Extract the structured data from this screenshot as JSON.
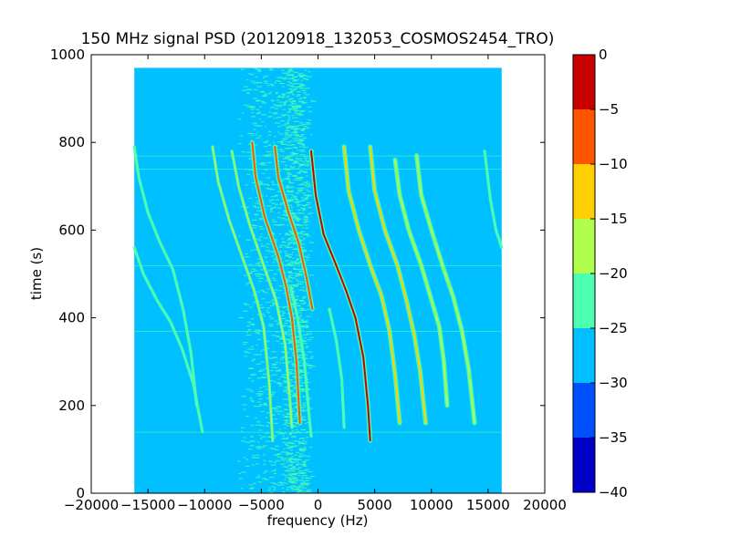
{
  "chart_data": {
    "type": "heatmap",
    "title": "150 MHz signal PSD (20120918_132053_COSMOS2454_TRO)",
    "xlabel": "frequency (Hz)",
    "ylabel": "time (s)",
    "xlim": [
      -20000,
      20000
    ],
    "ylim": [
      0,
      1000
    ],
    "x_ticks": [
      -20000,
      -15000,
      -10000,
      -5000,
      0,
      5000,
      10000,
      15000,
      20000
    ],
    "y_ticks": [
      0,
      200,
      400,
      600,
      800,
      1000
    ],
    "x_tick_labels": [
      "−20000",
      "−15000",
      "−10000",
      "−5000",
      "0",
      "5000",
      "10000",
      "15000",
      "20000"
    ],
    "y_tick_labels": [
      "0",
      "200",
      "400",
      "600",
      "800",
      "1000"
    ],
    "data_extent": {
      "x": [
        -16200,
        16200
      ],
      "y": [
        0,
        970
      ]
    },
    "background_level": -27,
    "grid": false,
    "colorbar": {
      "levels": [
        -40,
        -35,
        -30,
        -25,
        -20,
        -15,
        -10,
        -5,
        0
      ],
      "tick_labels": [
        "−40",
        "−35",
        "−30",
        "−25",
        "−20",
        "−15",
        "−10",
        "−5",
        "0"
      ],
      "colors": [
        "#0000c8",
        "#0050ff",
        "#00c0ff",
        "#4dffb0",
        "#b0ff4d",
        "#ffd000",
        "#ff5500",
        "#c80000"
      ]
    },
    "noise_bands": [
      {
        "x_center": -4000,
        "half_width": 3500,
        "level": -22
      },
      {
        "x_center": -2000,
        "half_width": 1500,
        "level": -22
      }
    ],
    "series": [
      {
        "peak_level": -22,
        "points": [
          [
            -16200,
            560
          ],
          [
            -15400,
            500
          ],
          [
            -14200,
            440
          ],
          [
            -13000,
            390
          ],
          [
            -12000,
            330
          ],
          [
            -11000,
            250
          ],
          [
            -10200,
            140
          ]
        ]
      },
      {
        "peak_level": -22,
        "points": [
          [
            -16200,
            790
          ],
          [
            -15800,
            720
          ],
          [
            -15000,
            640
          ],
          [
            -14000,
            575
          ],
          [
            -12800,
            510
          ],
          [
            -11900,
            420
          ],
          [
            -11200,
            320
          ],
          [
            -10700,
            200
          ]
        ]
      },
      {
        "peak_level": -20,
        "points": [
          [
            -9300,
            790
          ],
          [
            -8800,
            710
          ],
          [
            -7800,
            620
          ],
          [
            -6700,
            540
          ],
          [
            -5600,
            460
          ],
          [
            -4800,
            380
          ],
          [
            -4300,
            250
          ],
          [
            -4000,
            120
          ]
        ]
      },
      {
        "peak_level": -20,
        "points": [
          [
            -7600,
            780
          ],
          [
            -7000,
            700
          ],
          [
            -6000,
            610
          ],
          [
            -4800,
            520
          ],
          [
            -3700,
            440
          ],
          [
            -2900,
            340
          ],
          [
            -2500,
            220
          ],
          [
            -2300,
            150
          ]
        ]
      },
      {
        "peak_level": -8,
        "points": [
          [
            -5800,
            800
          ],
          [
            -5500,
            720
          ],
          [
            -4700,
            630
          ],
          [
            -3500,
            540
          ],
          [
            -2800,
            470
          ],
          [
            -2300,
            400
          ],
          [
            -1900,
            300
          ],
          [
            -1600,
            160
          ]
        ]
      },
      {
        "peak_level": -8,
        "points": [
          [
            -3800,
            790
          ],
          [
            -3500,
            720
          ],
          [
            -2600,
            640
          ],
          [
            -1700,
            570
          ],
          [
            -1000,
            490
          ],
          [
            -500,
            420
          ]
        ]
      },
      {
        "peak_level": -22,
        "points": [
          [
            -2400,
            470
          ],
          [
            -1800,
            400
          ],
          [
            -1200,
            300
          ],
          [
            -800,
            180
          ],
          [
            -600,
            130
          ]
        ]
      },
      {
        "peak_level": -5,
        "points": [
          [
            -600,
            780
          ],
          [
            -200,
            680
          ],
          [
            500,
            590
          ],
          [
            1600,
            520
          ],
          [
            2500,
            460
          ],
          [
            3300,
            400
          ],
          [
            4000,
            310
          ],
          [
            4400,
            200
          ],
          [
            4600,
            120
          ]
        ]
      },
      {
        "peak_level": -22,
        "points": [
          [
            1000,
            420
          ],
          [
            1600,
            350
          ],
          [
            2100,
            260
          ],
          [
            2300,
            150
          ]
        ]
      },
      {
        "peak_level": -13,
        "points": [
          [
            2300,
            790
          ],
          [
            2700,
            690
          ],
          [
            3600,
            600
          ],
          [
            4600,
            520
          ],
          [
            5600,
            450
          ],
          [
            6300,
            370
          ],
          [
            6800,
            270
          ],
          [
            7200,
            160
          ]
        ]
      },
      {
        "peak_level": -13,
        "points": [
          [
            4600,
            790
          ],
          [
            5000,
            690
          ],
          [
            5900,
            600
          ],
          [
            7000,
            520
          ],
          [
            7800,
            440
          ],
          [
            8500,
            360
          ],
          [
            9000,
            280
          ],
          [
            9500,
            160
          ]
        ]
      },
      {
        "peak_level": -17,
        "points": [
          [
            6800,
            760
          ],
          [
            7200,
            680
          ],
          [
            8000,
            600
          ],
          [
            9100,
            520
          ],
          [
            9900,
            450
          ],
          [
            10700,
            380
          ],
          [
            11100,
            300
          ],
          [
            11400,
            200
          ]
        ]
      },
      {
        "peak_level": -17,
        "points": [
          [
            8700,
            770
          ],
          [
            9100,
            680
          ],
          [
            10000,
            600
          ],
          [
            11100,
            510
          ],
          [
            11900,
            450
          ],
          [
            12700,
            370
          ],
          [
            13300,
            280
          ],
          [
            13800,
            160
          ]
        ]
      },
      {
        "peak_level": -22,
        "points": [
          [
            14700,
            780
          ],
          [
            15200,
            670
          ],
          [
            15700,
            600
          ],
          [
            16200,
            560
          ]
        ]
      }
    ]
  }
}
